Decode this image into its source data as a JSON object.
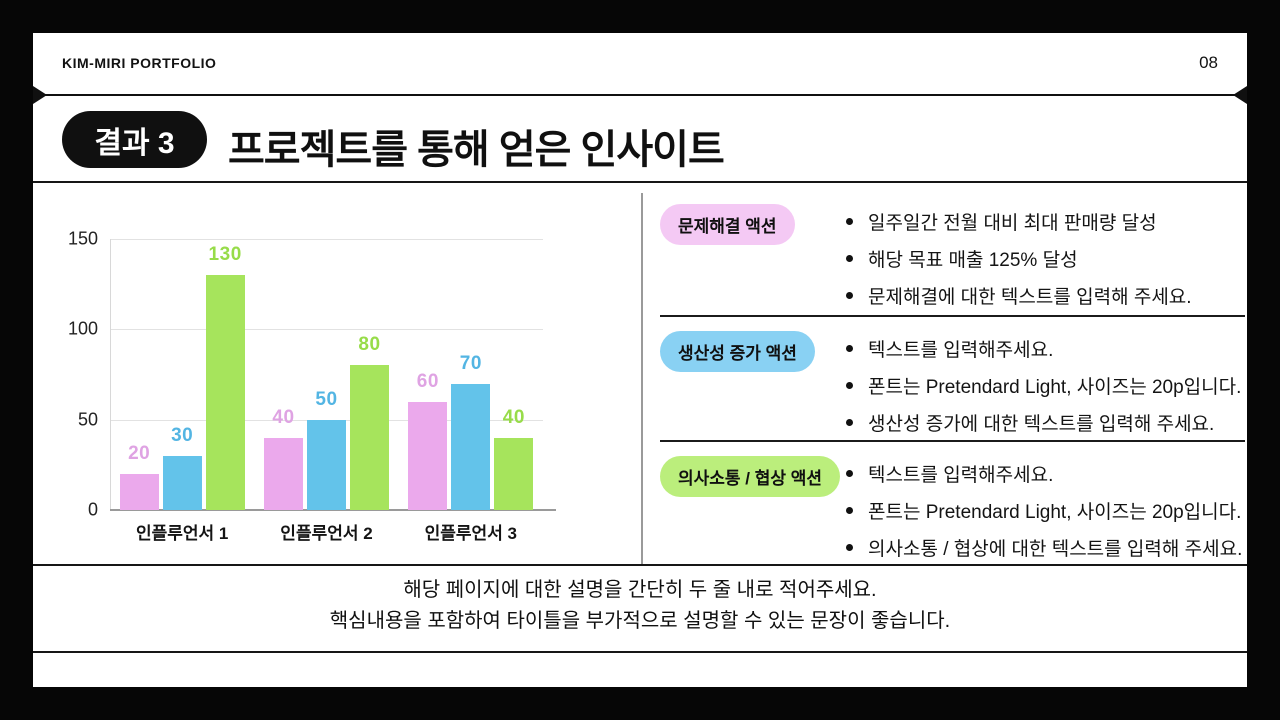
{
  "header": {
    "brand": "KIM-MIRI PORTFOLIO",
    "page_number": "08"
  },
  "title": {
    "badge": "결과 3",
    "text": "프로젝트를 통해 얻은 인사이트"
  },
  "chart_data": {
    "type": "bar",
    "title": "",
    "categories": [
      "인플루언서 1",
      "인플루언서 2",
      "인플루언서 3"
    ],
    "series": [
      {
        "name": "pink-series",
        "color": "#EBA9EC",
        "label_color": "#DFA3E3",
        "values": [
          20,
          40,
          60
        ]
      },
      {
        "name": "blue-series",
        "color": "#63C3EA",
        "label_color": "#53B5E3",
        "values": [
          30,
          50,
          70
        ]
      },
      {
        "name": "green-series",
        "color": "#A6E45C",
        "label_color": "#97DC49",
        "values": [
          130,
          80,
          40
        ]
      }
    ],
    "ylim": [
      0,
      150
    ],
    "yticks": [
      0,
      50,
      100,
      150
    ],
    "grid": true,
    "legend": "none",
    "value_labels": true
  },
  "sections": [
    {
      "badge": "문제해결 액션",
      "badge_color": "#F4C9F4",
      "bullets": [
        "일주일간 전월 대비 최대 판매량 달성",
        "해당 목표 매출 125% 달성",
        "문제해결에 대한 텍스트를 입력해 주세요."
      ]
    },
    {
      "badge": "생산성 증가 액션",
      "badge_color": "#89D1F3",
      "bullets": [
        "텍스트를 입력해주세요.",
        "폰트는 Pretendard Light, 사이즈는 20p입니다.",
        "생산성 증가에 대한 텍스트를 입력해 주세요."
      ]
    },
    {
      "badge": "의사소통 / 협상 액션",
      "badge_color": "#BBEE7C",
      "bullets": [
        "텍스트를 입력해주세요.",
        "폰트는 Pretendard Light, 사이즈는 20p입니다.",
        "의사소통 / 협상에 대한 텍스트를 입력해 주세요."
      ]
    }
  ],
  "footer": {
    "line1": "해당 페이지에 대한 설명을 간단히 두 줄 내로 적어주세요.",
    "line2": "핵심내용을 포함하여 타이틀을 부가적으로 설명할 수 있는 문장이 좋습니다."
  }
}
